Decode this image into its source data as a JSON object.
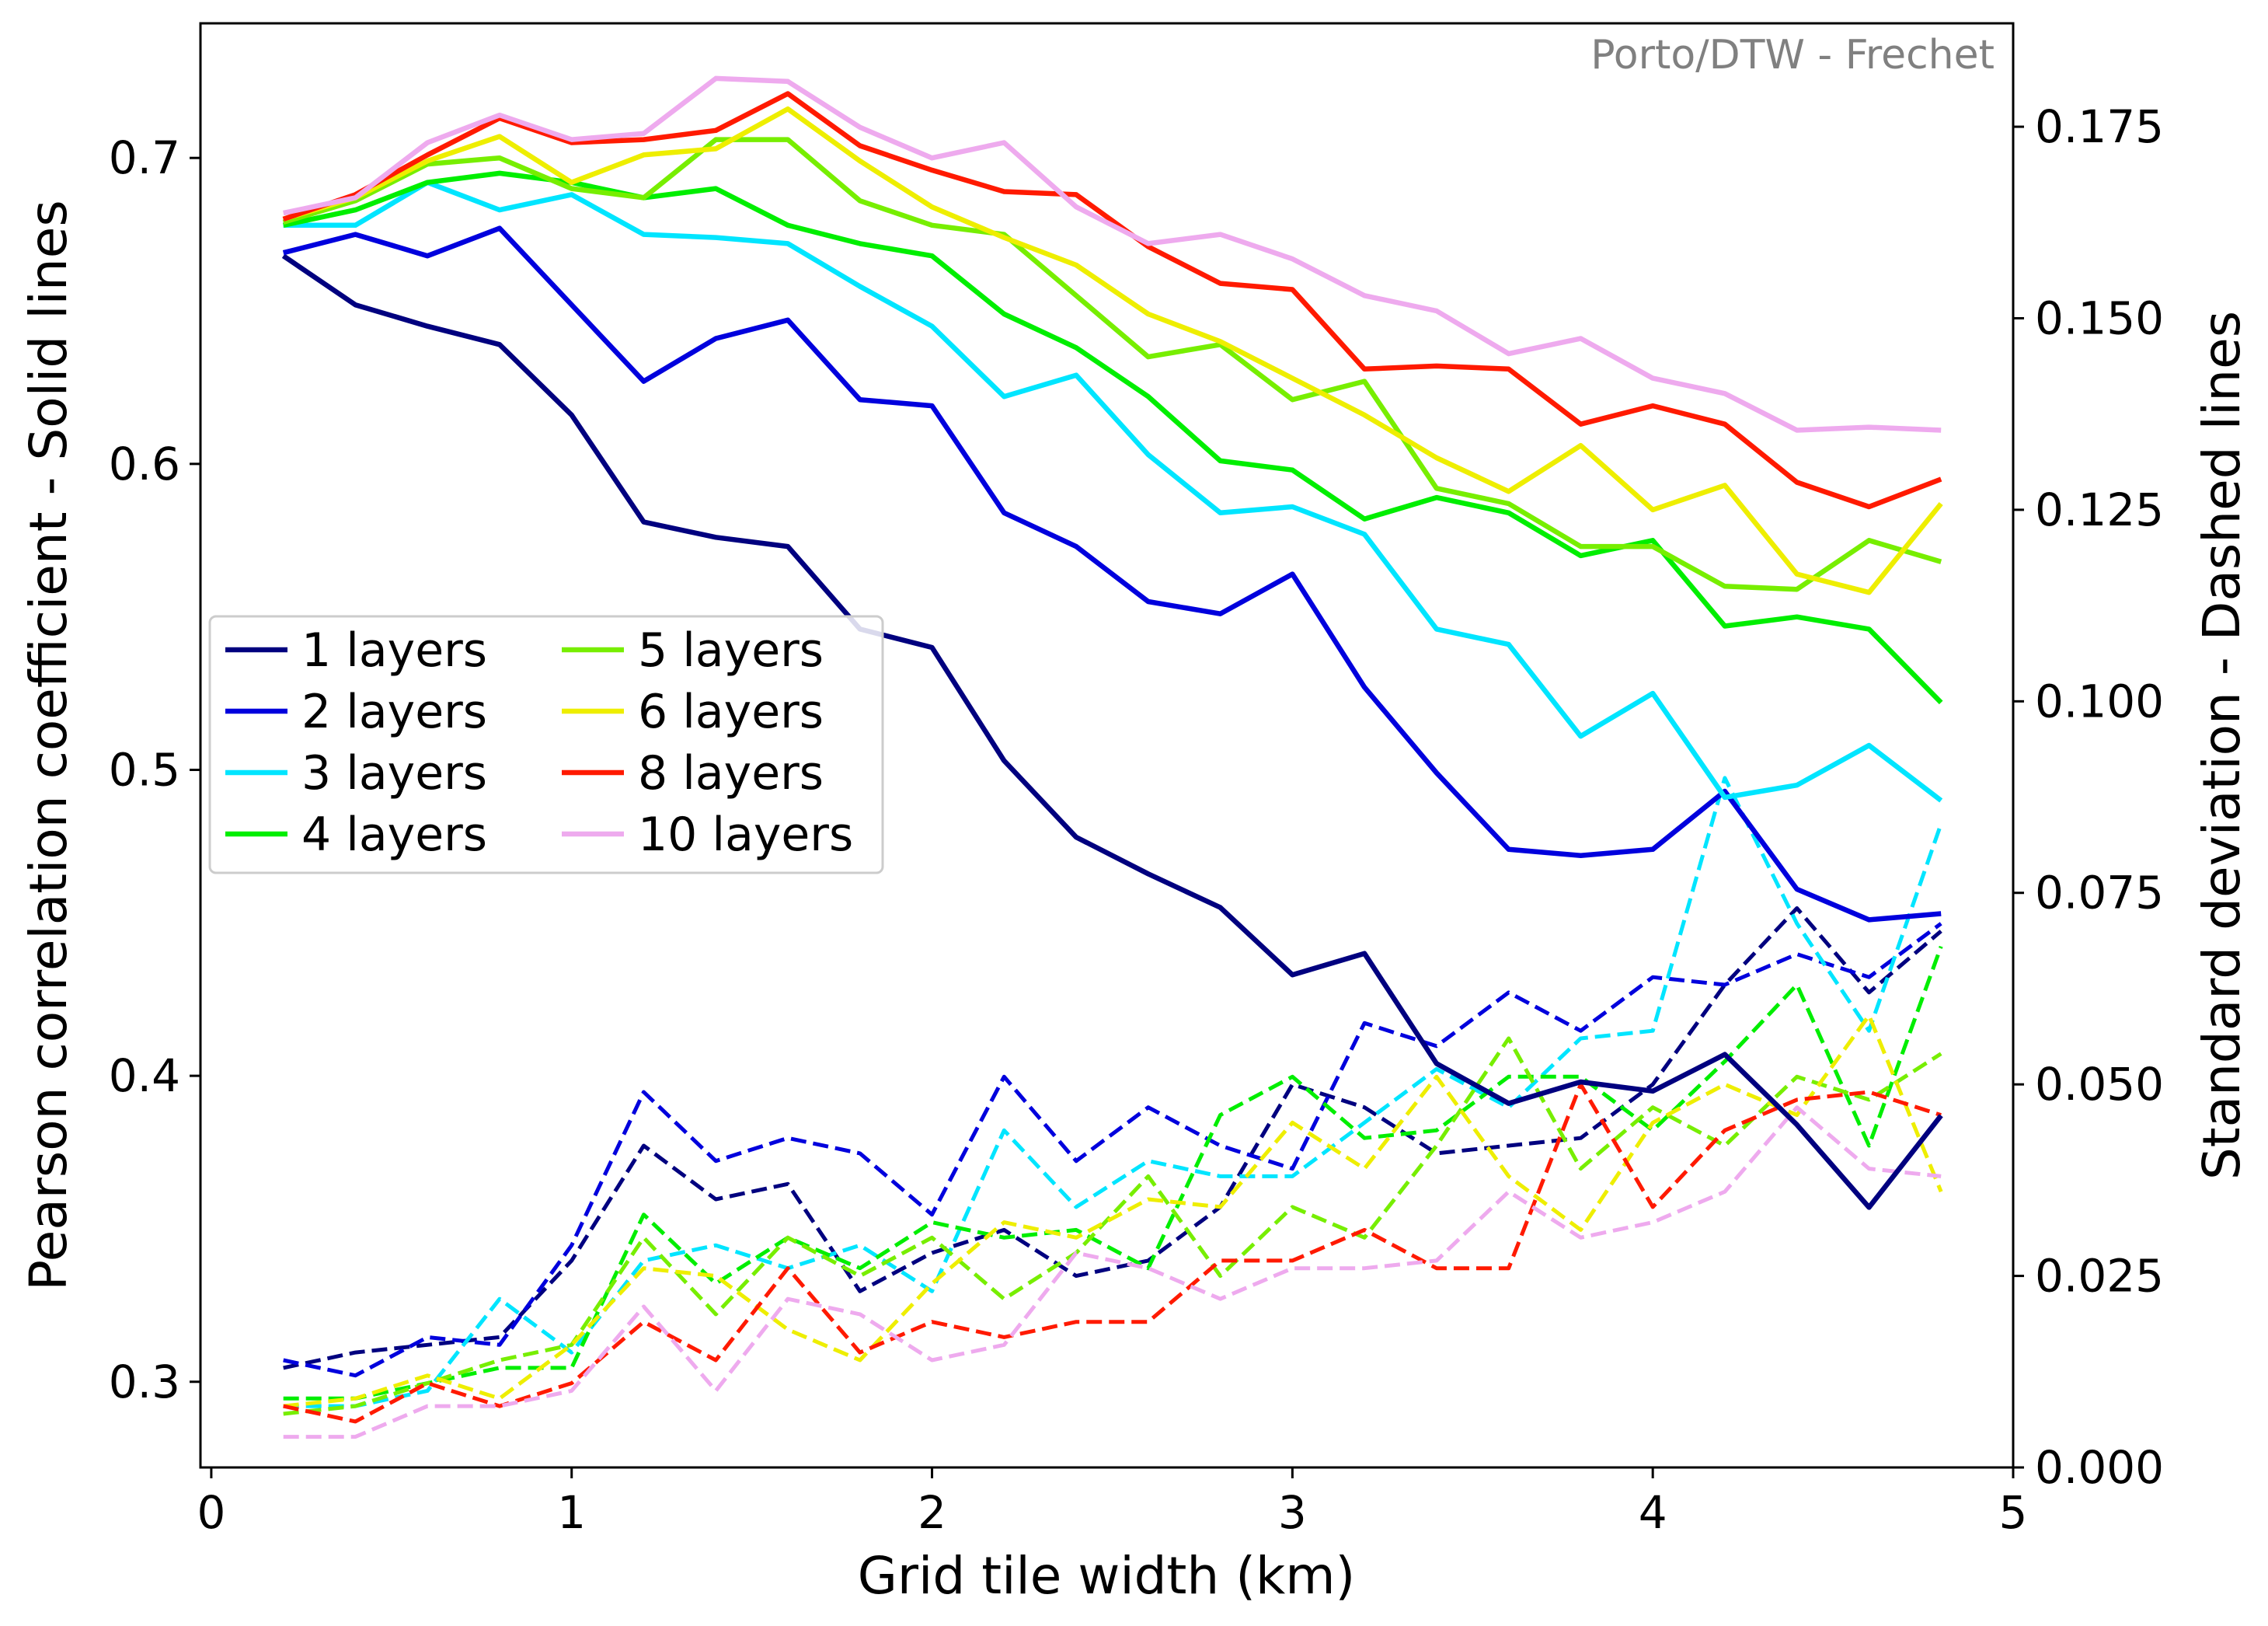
{
  "chart_data": {
    "type": "line",
    "title": "",
    "annotation": "Porto/DTW - Frechet",
    "xlabel": "Grid tile width (km)",
    "ylabel_left": "Pearson correlation coefficient - Solid lines",
    "ylabel_right": "Standard deviation - Dashed lines",
    "xlim": [
      -0.03,
      5.0
    ],
    "ylim_left": [
      0.272,
      0.744
    ],
    "ylim_right": [
      0.0,
      0.1885
    ],
    "x_ticks": [
      0,
      1,
      2,
      3,
      4,
      5
    ],
    "x_tick_labels": [
      "0",
      "1",
      "2",
      "3",
      "4",
      "5"
    ],
    "y_left_ticks": [
      0.3,
      0.4,
      0.5,
      0.6,
      0.7
    ],
    "y_left_tick_labels": [
      "0.3",
      "0.4",
      "0.5",
      "0.6",
      "0.7"
    ],
    "y_right_ticks": [
      0.0,
      0.025,
      0.05,
      0.075,
      0.1,
      0.125,
      0.15,
      0.175
    ],
    "y_right_tick_labels": [
      "0.000",
      "0.025",
      "0.050",
      "0.075",
      "0.100",
      "0.125",
      "0.150",
      "0.175"
    ],
    "grid": false,
    "legend_placement": "center-left",
    "legend_columns": 2,
    "x": [
      0.2,
      0.4,
      0.6,
      0.8,
      1.0,
      1.2,
      1.4,
      1.6,
      1.8,
      2.0,
      2.2,
      2.4,
      2.6,
      2.8,
      3.0,
      3.2,
      3.4,
      3.6,
      3.8,
      4.0,
      4.2,
      4.4,
      4.6,
      4.8
    ],
    "series": [
      {
        "name": "1 layers",
        "color": "#00007f",
        "pearson": [
          0.668,
          0.652,
          0.645,
          0.639,
          0.616,
          0.581,
          0.576,
          0.573,
          0.546,
          0.54,
          0.503,
          0.478,
          0.466,
          0.455,
          0.433,
          0.44,
          0.404,
          0.391,
          0.398,
          0.395,
          0.407,
          0.384,
          0.357,
          0.387
        ],
        "std": [
          0.013,
          0.015,
          0.016,
          0.017,
          0.027,
          0.042,
          0.035,
          0.037,
          0.023,
          0.028,
          0.031,
          0.025,
          0.027,
          0.034,
          0.05,
          0.047,
          0.041,
          0.042,
          0.043,
          0.05,
          0.063,
          0.073,
          0.062,
          0.07
        ]
      },
      {
        "name": "2 layers",
        "color": "#0000dd",
        "pearson": [
          0.669,
          0.675,
          0.668,
          0.677,
          0.652,
          0.627,
          0.641,
          0.647,
          0.621,
          0.619,
          0.584,
          0.573,
          0.555,
          0.551,
          0.564,
          0.527,
          0.499,
          0.474,
          0.472,
          0.474,
          0.493,
          0.461,
          0.451,
          0.453
        ],
        "std": [
          0.014,
          0.012,
          0.017,
          0.016,
          0.029,
          0.049,
          0.04,
          0.043,
          0.041,
          0.033,
          0.051,
          0.04,
          0.047,
          0.042,
          0.039,
          0.058,
          0.055,
          0.062,
          0.057,
          0.064,
          0.063,
          0.067,
          0.064,
          0.071
        ]
      },
      {
        "name": "3 layers",
        "color": "#00e5ff",
        "pearson": [
          0.678,
          0.678,
          0.692,
          0.683,
          0.688,
          0.675,
          0.674,
          0.672,
          0.658,
          0.645,
          0.622,
          0.629,
          0.603,
          0.584,
          0.586,
          0.577,
          0.546,
          0.541,
          0.511,
          0.525,
          0.491,
          0.495,
          0.508,
          0.49
        ],
        "std": [
          0.008,
          0.008,
          0.01,
          0.022,
          0.015,
          0.027,
          0.029,
          0.026,
          0.029,
          0.023,
          0.044,
          0.034,
          0.04,
          0.038,
          0.038,
          0.045,
          0.052,
          0.047,
          0.056,
          0.057,
          0.09,
          0.071,
          0.057,
          0.084
        ]
      },
      {
        "name": "4 layers",
        "color": "#00ee00",
        "pearson": [
          0.678,
          0.683,
          0.692,
          0.695,
          0.692,
          0.687,
          0.69,
          0.678,
          0.672,
          0.668,
          0.649,
          0.638,
          0.622,
          0.601,
          0.598,
          0.582,
          0.589,
          0.584,
          0.57,
          0.575,
          0.547,
          0.55,
          0.546,
          0.522
        ],
        "std": [
          0.009,
          0.009,
          0.011,
          0.013,
          0.013,
          0.033,
          0.024,
          0.03,
          0.026,
          0.032,
          0.03,
          0.031,
          0.026,
          0.046,
          0.051,
          0.043,
          0.044,
          0.051,
          0.051,
          0.044,
          0.053,
          0.063,
          0.042,
          0.068
        ]
      },
      {
        "name": "5 layers",
        "color": "#77ee00",
        "pearson": [
          0.679,
          0.686,
          0.698,
          0.7,
          0.69,
          0.687,
          0.706,
          0.706,
          0.686,
          0.678,
          0.675,
          0.655,
          0.635,
          0.639,
          0.621,
          0.627,
          0.592,
          0.587,
          0.573,
          0.573,
          0.56,
          0.559,
          0.575,
          0.568
        ],
        "std": [
          0.007,
          0.008,
          0.011,
          0.014,
          0.016,
          0.03,
          0.02,
          0.03,
          0.025,
          0.03,
          0.022,
          0.028,
          0.038,
          0.025,
          0.034,
          0.03,
          0.042,
          0.056,
          0.039,
          0.047,
          0.042,
          0.051,
          0.048,
          0.054
        ]
      },
      {
        "name": "6 layers",
        "color": "#eeee00",
        "pearson": [
          0.68,
          0.687,
          0.699,
          0.707,
          0.692,
          0.701,
          0.703,
          0.716,
          0.699,
          0.684,
          0.674,
          0.665,
          0.649,
          0.64,
          0.628,
          0.616,
          0.602,
          0.591,
          0.606,
          0.585,
          0.593,
          0.564,
          0.558,
          0.587
        ],
        "std": [
          0.008,
          0.009,
          0.012,
          0.009,
          0.016,
          0.026,
          0.025,
          0.018,
          0.014,
          0.024,
          0.032,
          0.03,
          0.035,
          0.034,
          0.045,
          0.039,
          0.051,
          0.038,
          0.031,
          0.045,
          0.05,
          0.046,
          0.059,
          0.036
        ]
      },
      {
        "name": "8 layers",
        "color": "#ff1a00",
        "pearson": [
          0.68,
          0.688,
          0.701,
          0.713,
          0.705,
          0.706,
          0.709,
          0.721,
          0.704,
          0.696,
          0.689,
          0.688,
          0.671,
          0.659,
          0.657,
          0.631,
          0.632,
          0.631,
          0.613,
          0.619,
          0.613,
          0.594,
          0.586,
          0.595
        ],
        "std": [
          0.008,
          0.006,
          0.011,
          0.008,
          0.011,
          0.019,
          0.014,
          0.026,
          0.015,
          0.019,
          0.017,
          0.019,
          0.019,
          0.027,
          0.027,
          0.031,
          0.026,
          0.026,
          0.05,
          0.034,
          0.044,
          0.048,
          0.049,
          0.046
        ]
      },
      {
        "name": "10 layers",
        "color": "#eeaaee",
        "pearson": [
          0.682,
          0.687,
          0.705,
          0.714,
          0.706,
          0.708,
          0.726,
          0.725,
          0.71,
          0.7,
          0.705,
          0.684,
          0.672,
          0.675,
          0.667,
          0.655,
          0.65,
          0.636,
          0.641,
          0.628,
          0.623,
          0.611,
          0.612,
          0.611
        ],
        "std": [
          0.004,
          0.004,
          0.008,
          0.008,
          0.01,
          0.021,
          0.01,
          0.022,
          0.02,
          0.014,
          0.016,
          0.028,
          0.026,
          0.022,
          0.026,
          0.026,
          0.027,
          0.036,
          0.03,
          0.032,
          0.036,
          0.047,
          0.039,
          0.038
        ]
      }
    ]
  }
}
